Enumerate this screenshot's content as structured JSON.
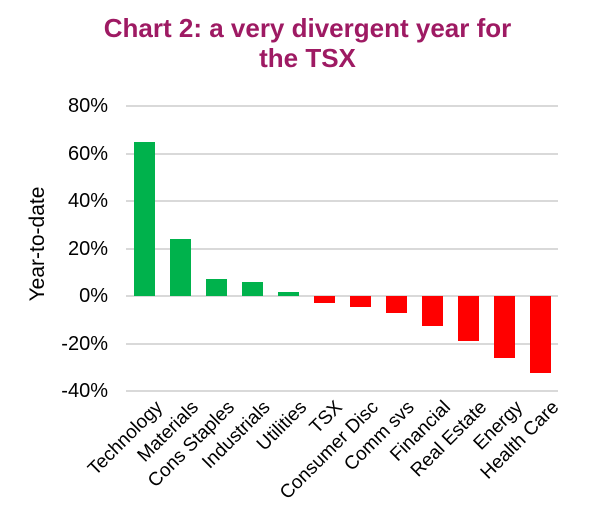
{
  "title": {
    "line1": "Chart 2: a very divergent year for",
    "line2": "the TSX"
  },
  "colors": {
    "title": "#9E1A63",
    "positive_bar": "#00B24C",
    "negative_bar": "#FF0000",
    "gridline": "#D9D9D9",
    "axis_text": "#000000"
  },
  "chart_data": {
    "type": "bar",
    "title": "Chart 2: a very divergent year for the TSX",
    "xlabel": "",
    "ylabel": "Year-to-date",
    "categories": [
      "Technology",
      "Materials",
      "Cons Staples",
      "Industrials",
      "Utilities",
      "TSX",
      "Consumer Disc",
      "Comm svs",
      "Financial",
      "Real Estate",
      "Energy",
      "Health Care"
    ],
    "values": [
      65,
      24,
      7.3,
      6,
      1.8,
      -2.8,
      -4.8,
      -7.2,
      -12.8,
      -19,
      -26.3,
      -32.3
    ],
    "unit": "%",
    "ylim": [
      -40,
      80
    ],
    "ytick_values": [
      80,
      60,
      40,
      20,
      0,
      -20,
      -40
    ],
    "ytick_labels": [
      "80%",
      "60%",
      "40%",
      "20%",
      "0%",
      "-20%",
      "-40%"
    ],
    "grid": true,
    "legend": "none",
    "bar_color_rule": "green if positive, red if negative"
  }
}
